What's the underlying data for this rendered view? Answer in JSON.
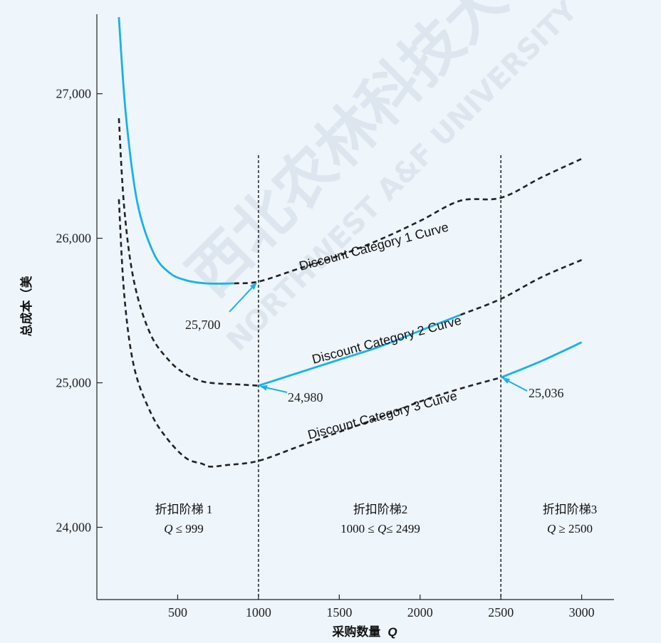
{
  "chart_data": {
    "type": "line",
    "title": "",
    "xlabel": "采购数量",
    "xlabel_var": "Q",
    "ylabel": "总成本（美",
    "xlim": [
      0,
      3200
    ],
    "ylim": [
      23500,
      27550
    ],
    "xticks": [
      500,
      1000,
      1500,
      2000,
      2500,
      3000
    ],
    "xtick_labels": [
      "500",
      "1000",
      "1500",
      "2000",
      "2500",
      "3000"
    ],
    "yticks": [
      24000,
      25000,
      26000,
      27000
    ],
    "ytick_labels": [
      "24,000",
      "25,000",
      "26,000",
      "27,000"
    ],
    "grid": false,
    "series": [
      {
        "name": "Discount Category 1 Curve",
        "points": [
          [
            136,
            27530
          ],
          [
            180,
            26850
          ],
          [
            250,
            26250
          ],
          [
            350,
            25900
          ],
          [
            450,
            25760
          ],
          [
            550,
            25710
          ],
          [
            650,
            25690
          ],
          [
            750,
            25686
          ],
          [
            850,
            25688
          ],
          [
            1000,
            25700
          ],
          [
            1250,
            25790
          ],
          [
            1500,
            25880
          ],
          [
            1750,
            25990
          ],
          [
            2000,
            26120
          ],
          [
            2250,
            26260
          ],
          [
            2500,
            26280
          ],
          [
            2750,
            26420
          ],
          [
            3000,
            26550
          ]
        ],
        "solid_range": [
          136,
          999
        ],
        "color": "#16b2ea"
      },
      {
        "name": "Discount Category 2 Curve",
        "points": [
          [
            136,
            26830
          ],
          [
            170,
            26200
          ],
          [
            230,
            25700
          ],
          [
            330,
            25340
          ],
          [
            450,
            25150
          ],
          [
            550,
            25060
          ],
          [
            650,
            25010
          ],
          [
            750,
            24995
          ],
          [
            850,
            24990
          ],
          [
            1000,
            24980
          ],
          [
            1250,
            25070
          ],
          [
            1500,
            25160
          ],
          [
            1750,
            25250
          ],
          [
            2000,
            25360
          ],
          [
            2250,
            25470
          ],
          [
            2500,
            25580
          ],
          [
            2750,
            25730
          ],
          [
            3000,
            25850
          ]
        ],
        "solid_range": [
          1000,
          2499
        ],
        "color": "#16b2ea"
      },
      {
        "name": "Discount Category 3 Curve",
        "points": [
          [
            136,
            26270
          ],
          [
            170,
            25600
          ],
          [
            230,
            25110
          ],
          [
            330,
            24800
          ],
          [
            430,
            24620
          ],
          [
            550,
            24480
          ],
          [
            650,
            24440
          ],
          [
            700,
            24420
          ],
          [
            800,
            24430
          ],
          [
            1000,
            24460
          ],
          [
            1250,
            24560
          ],
          [
            1500,
            24660
          ],
          [
            1750,
            24760
          ],
          [
            2000,
            24870
          ],
          [
            2250,
            24960
          ],
          [
            2500,
            25036
          ],
          [
            2750,
            25150
          ],
          [
            3000,
            25280
          ]
        ],
        "solid_range": [
          2500,
          3000
        ],
        "color": "#16b2ea"
      }
    ],
    "breakpoints": [
      1000,
      2500
    ],
    "annotations": [
      {
        "text": "25,700",
        "x": 1000,
        "y": 25700
      },
      {
        "text": "24,980",
        "x": 1000,
        "y": 24980
      },
      {
        "text": "25,036",
        "x": 2500,
        "y": 25036
      }
    ],
    "regions": [
      {
        "name": "折扣阶梯 1",
        "condition": "Q ≤ 999",
        "x_center": 500
      },
      {
        "name": "折扣阶梯2",
        "condition": "1000 ≤ Q≤ 2499",
        "x_center": 1750
      },
      {
        "name": "折扣阶梯3",
        "condition": "Q ≥ 2500",
        "x_center": 2850
      }
    ],
    "dashed_color": "#222222"
  },
  "watermark": {
    "chinese": "西北农林科技大学",
    "english": "NORTHWEST A&F UNIVERSITY"
  }
}
